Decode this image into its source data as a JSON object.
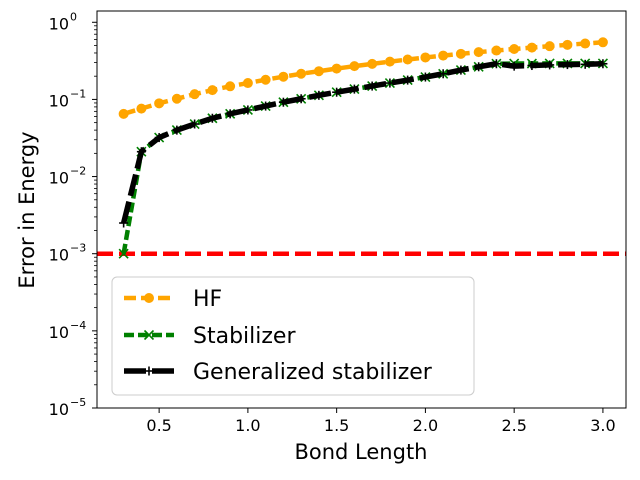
{
  "chart_data": {
    "type": "line",
    "title": "",
    "xlabel": "Bond Length",
    "ylabel": "Error in Energy",
    "yscale": "log",
    "xlim": [
      0.15,
      3.13
    ],
    "ylim": [
      1e-05,
      1.4
    ],
    "xticks": [
      0.5,
      1.0,
      1.5,
      2.0,
      2.5,
      3.0
    ],
    "xtick_labels": [
      "0.5",
      "1.0",
      "1.5",
      "2.0",
      "2.5",
      "3.0"
    ],
    "yticks": [
      1e-05,
      0.0001,
      0.001,
      0.01,
      0.1,
      1
    ],
    "ytick_base": [
      "10",
      "10",
      "10",
      "10",
      "10",
      "10"
    ],
    "ytick_exp": [
      "−5",
      "−4",
      "−3",
      "−2",
      "−1",
      "0"
    ],
    "reference_line": {
      "y": 0.001,
      "color": "#ff0000",
      "style": "dashed"
    },
    "legend_position": "lower-left",
    "series": [
      {
        "name": "HF",
        "color": "#ffa500",
        "marker": "circle",
        "dash": "12,5",
        "x": [
          0.3,
          0.4,
          0.5,
          0.6,
          0.7,
          0.8,
          0.9,
          1.0,
          1.1,
          1.2,
          1.3,
          1.4,
          1.5,
          1.6,
          1.7,
          1.8,
          1.9,
          2.0,
          2.1,
          2.2,
          2.3,
          2.4,
          2.5,
          2.6,
          2.7,
          2.8,
          2.9,
          3.0
        ],
        "y": [
          0.065,
          0.076,
          0.089,
          0.102,
          0.117,
          0.132,
          0.148,
          0.163,
          0.18,
          0.197,
          0.215,
          0.232,
          0.251,
          0.27,
          0.289,
          0.309,
          0.329,
          0.35,
          0.37,
          0.39,
          0.41,
          0.43,
          0.45,
          0.47,
          0.49,
          0.51,
          0.53,
          0.55
        ]
      },
      {
        "name": "Stabilizer",
        "color": "#008000",
        "marker": "x",
        "dash": "10,4",
        "x": [
          0.3,
          0.4,
          0.5,
          0.6,
          0.7,
          0.8,
          0.9,
          1.0,
          1.1,
          1.2,
          1.3,
          1.4,
          1.5,
          1.6,
          1.7,
          1.8,
          1.9,
          2.0,
          2.1,
          2.2,
          2.3,
          2.4,
          2.5,
          2.6,
          2.7,
          2.8,
          2.9,
          3.0
        ],
        "y": [
          0.001,
          0.021,
          0.032,
          0.04,
          0.048,
          0.057,
          0.065,
          0.073,
          0.082,
          0.092,
          0.102,
          0.113,
          0.124,
          0.136,
          0.149,
          0.163,
          0.178,
          0.195,
          0.215,
          0.24,
          0.265,
          0.29,
          0.292,
          0.292,
          0.293,
          0.293,
          0.293,
          0.293
        ]
      },
      {
        "name": "Generalized stabilizer",
        "color": "#000000",
        "marker": "plus",
        "dash": "22,6",
        "x": [
          0.3,
          0.4,
          0.5,
          0.6,
          0.7,
          0.8,
          0.9,
          1.0,
          1.1,
          1.2,
          1.3,
          1.4,
          1.5,
          1.6,
          1.7,
          1.8,
          1.9,
          2.0,
          2.1,
          2.2,
          2.3,
          2.4,
          2.5,
          2.6,
          2.7,
          2.8,
          2.9,
          3.0
        ],
        "y": [
          0.0025,
          0.021,
          0.032,
          0.04,
          0.048,
          0.057,
          0.065,
          0.073,
          0.082,
          0.092,
          0.102,
          0.113,
          0.124,
          0.136,
          0.149,
          0.163,
          0.178,
          0.195,
          0.215,
          0.24,
          0.265,
          0.29,
          0.27,
          0.275,
          0.28,
          0.283,
          0.285,
          0.29
        ]
      }
    ]
  }
}
